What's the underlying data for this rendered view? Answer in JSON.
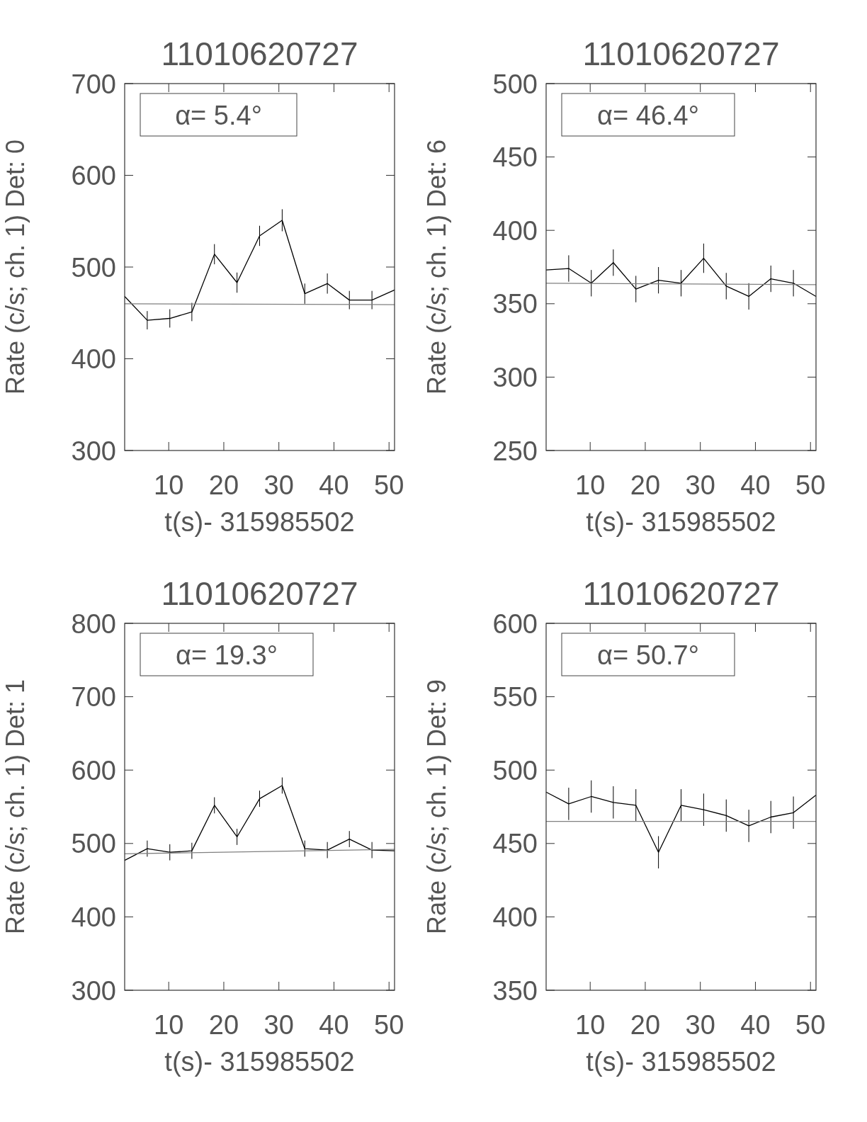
{
  "chart_data": [
    {
      "type": "line",
      "title": "11010620727",
      "xlabel": "t(s)- 315985502",
      "ylabel": "Rate (c/s; ch. 1) Det: 0",
      "annotations": [
        "α= 5.4°"
      ],
      "xlim": [
        2,
        51
      ],
      "xticks": [
        10,
        20,
        30,
        40,
        50
      ],
      "ylim": [
        300,
        700
      ],
      "yticks": [
        300,
        400,
        500,
        600,
        700
      ],
      "grid": false,
      "marker": "none",
      "line_style": "solid",
      "series": [
        {
          "color": "#000000",
          "x": [
            2,
            6.1,
            10.2,
            14.2,
            18.3,
            22.4,
            26.5,
            30.6,
            34.7,
            38.8,
            42.8,
            46.9,
            51
          ],
          "values": [
            468,
            442,
            444,
            451,
            514,
            483,
            534,
            551,
            471,
            482,
            464,
            464,
            475
          ],
          "errors": [
            null,
            10,
            10,
            10,
            11,
            11,
            11,
            12,
            11,
            11,
            10,
            10,
            null
          ]
        },
        {
          "color": "#808080",
          "x": [
            2,
            51
          ],
          "values": [
            460,
            459
          ]
        }
      ]
    },
    {
      "type": "line",
      "title": "11010620727",
      "xlabel": "t(s)- 315985502",
      "ylabel": "Rate (c/s; ch. 1) Det: 6",
      "annotations": [
        "α= 46.4°"
      ],
      "xlim": [
        2,
        51
      ],
      "xticks": [
        10,
        20,
        30,
        40,
        50
      ],
      "ylim": [
        250,
        500
      ],
      "yticks": [
        250,
        300,
        350,
        400,
        450,
        500
      ],
      "grid": false,
      "marker": "none",
      "line_style": "solid",
      "series": [
        {
          "color": "#000000",
          "x": [
            2,
            6.1,
            10.2,
            14.2,
            18.3,
            22.4,
            26.5,
            30.6,
            34.7,
            38.8,
            42.8,
            46.9,
            51
          ],
          "values": [
            373,
            374,
            364,
            378,
            360,
            366,
            364,
            381,
            362,
            355,
            367,
            364,
            355
          ],
          "errors": [
            null,
            9,
            9,
            9,
            9,
            9,
            9,
            10,
            9,
            9,
            9,
            9,
            null
          ]
        },
        {
          "color": "#808080",
          "x": [
            2,
            51
          ],
          "values": [
            364,
            363
          ]
        }
      ]
    },
    {
      "type": "line",
      "title": "11010620727",
      "xlabel": "t(s)- 315985502",
      "ylabel": "Rate (c/s; ch. 1) Det: 1",
      "annotations": [
        "α= 19.3°"
      ],
      "xlim": [
        2,
        51
      ],
      "xticks": [
        10,
        20,
        30,
        40,
        50
      ],
      "ylim": [
        300,
        800
      ],
      "yticks": [
        300,
        400,
        500,
        600,
        700,
        800
      ],
      "grid": false,
      "marker": "none",
      "line_style": "solid",
      "series": [
        {
          "color": "#000000",
          "x": [
            2,
            6.1,
            10.2,
            14.2,
            18.3,
            22.4,
            26.5,
            30.6,
            34.7,
            38.8,
            42.8,
            46.9,
            51
          ],
          "values": [
            477,
            493,
            488,
            490,
            552,
            509,
            561,
            579,
            493,
            491,
            506,
            491,
            490
          ],
          "errors": [
            null,
            11,
            11,
            11,
            11,
            11,
            11,
            11,
            11,
            11,
            11,
            11,
            null
          ]
        },
        {
          "color": "#808080",
          "x": [
            2,
            51
          ],
          "values": [
            486,
            492
          ]
        }
      ]
    },
    {
      "type": "line",
      "title": "11010620727",
      "xlabel": "t(s)- 315985502",
      "ylabel": "Rate (c/s; ch. 1) Det: 9",
      "annotations": [
        "α= 50.7°"
      ],
      "xlim": [
        2,
        51
      ],
      "xticks": [
        10,
        20,
        30,
        40,
        50
      ],
      "ylim": [
        350,
        600
      ],
      "yticks": [
        350,
        400,
        450,
        500,
        550,
        600
      ],
      "grid": false,
      "marker": "none",
      "line_style": "solid",
      "series": [
        {
          "color": "#000000",
          "x": [
            2,
            6.1,
            10.2,
            14.2,
            18.3,
            22.4,
            26.5,
            30.6,
            34.7,
            38.8,
            42.8,
            46.9,
            51
          ],
          "values": [
            485,
            477,
            482,
            478,
            476,
            444,
            476,
            473,
            469,
            462,
            468,
            471,
            483
          ],
          "errors": [
            null,
            11,
            11,
            11,
            11,
            11,
            11,
            11,
            11,
            11,
            11,
            11,
            null
          ]
        },
        {
          "color": "#808080",
          "x": [
            2,
            51
          ],
          "values": [
            465,
            465
          ]
        }
      ]
    }
  ]
}
